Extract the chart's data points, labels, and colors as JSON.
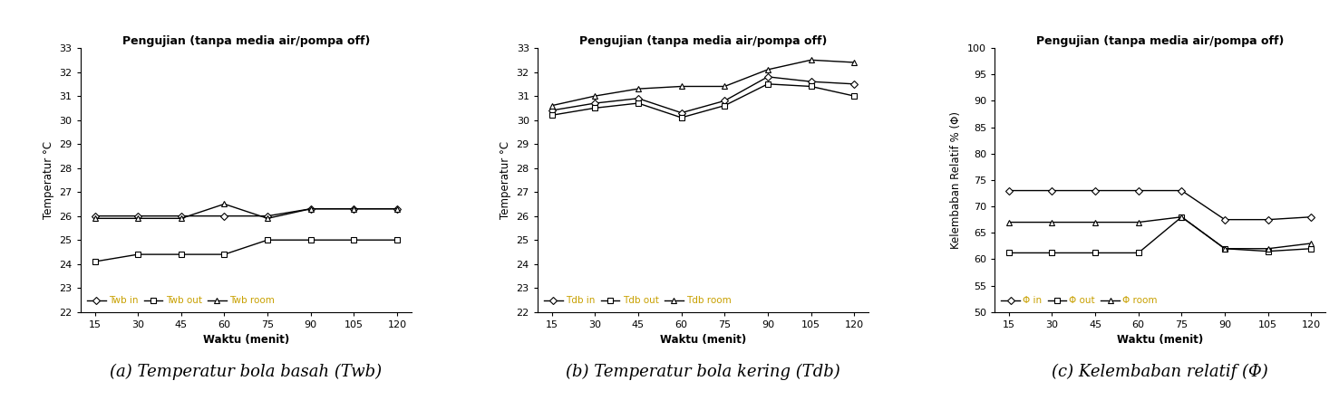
{
  "x": [
    15,
    30,
    45,
    60,
    75,
    90,
    105,
    120
  ],
  "twb_in": [
    26.0,
    26.0,
    26.0,
    26.0,
    26.0,
    26.3,
    26.3,
    26.3
  ],
  "twb_out": [
    24.1,
    24.4,
    24.4,
    24.4,
    25.0,
    25.0,
    25.0,
    25.0
  ],
  "twb_room": [
    25.9,
    25.9,
    25.9,
    26.5,
    25.9,
    26.3,
    26.3,
    26.3
  ],
  "tdb_in": [
    30.4,
    30.7,
    30.9,
    30.3,
    30.8,
    31.8,
    31.6,
    31.5
  ],
  "tdb_out": [
    30.2,
    30.5,
    30.7,
    30.1,
    30.6,
    31.5,
    31.4,
    31.0
  ],
  "tdb_room": [
    30.6,
    31.0,
    31.3,
    31.4,
    31.4,
    32.1,
    32.5,
    32.4
  ],
  "phi_in": [
    73.0,
    73.0,
    73.0,
    73.0,
    73.0,
    67.5,
    67.5,
    68.0
  ],
  "phi_out": [
    61.2,
    61.2,
    61.2,
    61.2,
    68.0,
    62.0,
    61.5,
    62.0
  ],
  "phi_room": [
    67.0,
    67.0,
    67.0,
    67.0,
    68.0,
    62.0,
    62.0,
    63.0
  ],
  "title": "Pengujian (tanpa media air/pompa off)",
  "ylabel_temp": "Temperatur °C",
  "ylabel_phi": "Kelembaban Relatif % (Φ)",
  "xlabel": "Waktu (menit)",
  "caption_a": "(a) Temperatur bola basah (Twb)",
  "caption_b": "(b) Temperatur bola kering (Tdb)",
  "caption_c": "(c) Kelembaban relatif (Φ)",
  "legend_a": [
    "Twb in",
    "Twb out",
    "Twb room"
  ],
  "legend_b": [
    "Tdb in",
    "Tdb out",
    "Tdb room"
  ],
  "legend_c": [
    "Φ in",
    "Φ out",
    "Φ room"
  ],
  "ylim_temp": [
    22,
    33
  ],
  "yticks_temp": [
    22,
    23,
    24,
    25,
    26,
    27,
    28,
    29,
    30,
    31,
    32,
    33
  ],
  "ylim_phi": [
    50,
    100
  ],
  "yticks_phi": [
    50,
    55,
    60,
    65,
    70,
    75,
    80,
    85,
    90,
    95,
    100
  ],
  "line_color": "#000000",
  "legend_text_color": "#c8a000",
  "background": "#ffffff",
  "fig_width": 14.77,
  "fig_height": 4.42,
  "dpi": 100
}
